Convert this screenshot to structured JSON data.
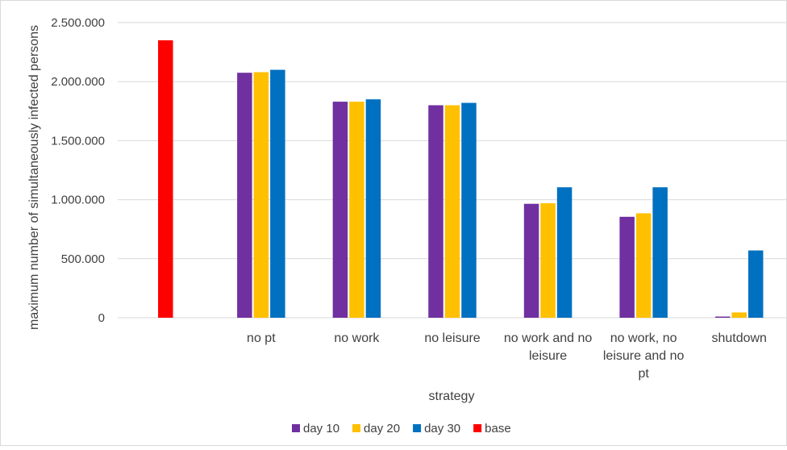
{
  "chart_data": {
    "type": "bar",
    "title": "",
    "xlabel": "strategy",
    "ylabel": "maximum number of simultaneously infected persons",
    "ylim": [
      0,
      2500000
    ],
    "yticks": [
      0,
      500000,
      1000000,
      1500000,
      2000000,
      2500000
    ],
    "ytick_labels": [
      "0",
      "500.000",
      "1.000.000",
      "1.500.000",
      "2.000.000",
      "2.500.000"
    ],
    "grid": true,
    "legend_position": "bottom",
    "categories": [
      "",
      "no pt",
      "no work",
      "no leisure",
      "no work and no leisure",
      "no work, no leisure and no pt",
      "shutdown"
    ],
    "category_label_lines": [
      [],
      [
        "no pt"
      ],
      [
        "no work"
      ],
      [
        "no leisure"
      ],
      [
        "no work and no",
        "leisure"
      ],
      [
        "no work, no",
        "leisure and no",
        "pt"
      ],
      [
        "shutdown"
      ]
    ],
    "series": [
      {
        "name": "day 10",
        "color": "#7030A0",
        "values": [
          null,
          2075000,
          1830000,
          1800000,
          965000,
          855000,
          10000
        ]
      },
      {
        "name": "day 20",
        "color": "#FFC000",
        "values": [
          null,
          2080000,
          1830000,
          1800000,
          970000,
          885000,
          45000
        ]
      },
      {
        "name": "day 30",
        "color": "#0070C0",
        "values": [
          null,
          2100000,
          1850000,
          1820000,
          1105000,
          1105000,
          570000
        ]
      },
      {
        "name": "base",
        "color": "#FF0000",
        "values": [
          2350000,
          null,
          null,
          null,
          null,
          null,
          null
        ]
      }
    ]
  }
}
